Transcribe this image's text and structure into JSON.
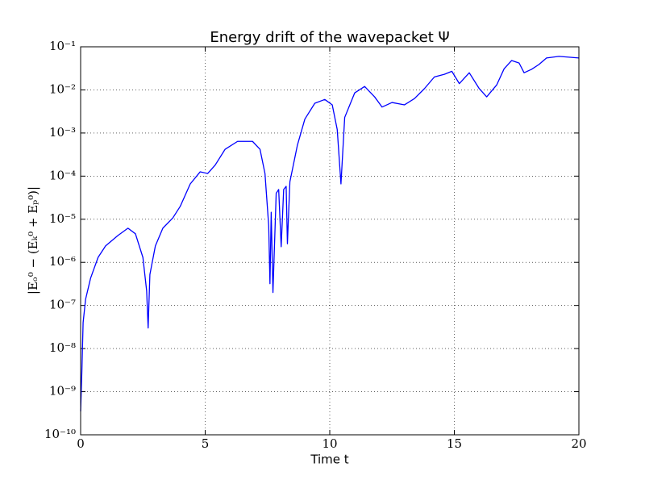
{
  "chart_data": {
    "type": "line",
    "title": "Energy drift of the wavepacket Ψ",
    "xlabel": "Time t",
    "ylabel": "|Eₒ⁰ − (Eₖ⁰ + Eₚ⁰)|",
    "color": "#0000ff",
    "yscale": "log",
    "grid": true,
    "xlim": [
      0,
      20
    ],
    "xticks": [
      0,
      5,
      10,
      15,
      20
    ],
    "ylim": [
      1e-10,
      0.1
    ],
    "yticks": [
      {
        "value": 1e-10,
        "label": "10⁻¹⁰"
      },
      {
        "value": 1e-09,
        "label": "10⁻⁹"
      },
      {
        "value": 1e-08,
        "label": "10⁻⁸"
      },
      {
        "value": 1e-07,
        "label": "10⁻⁷"
      },
      {
        "value": 1e-06,
        "label": "10⁻⁶"
      },
      {
        "value": 1e-05,
        "label": "10⁻⁵"
      },
      {
        "value": 0.0001,
        "label": "10⁻⁴"
      },
      {
        "value": 0.001,
        "label": "10⁻³"
      },
      {
        "value": 0.01,
        "label": "10⁻²"
      },
      {
        "value": 0.1,
        "label": "10⁻¹"
      }
    ],
    "x": [
      0,
      0.05,
      0.1,
      0.2,
      0.4,
      0.7,
      1.0,
      1.5,
      1.9,
      2.2,
      2.5,
      2.65,
      2.71,
      2.78,
      3.0,
      3.3,
      3.7,
      4.0,
      4.4,
      4.8,
      5.1,
      5.4,
      5.8,
      6.3,
      6.9,
      7.2,
      7.4,
      7.55,
      7.6,
      7.65,
      7.72,
      7.85,
      7.95,
      8.05,
      8.15,
      8.25,
      8.3,
      8.4,
      8.7,
      9.0,
      9.4,
      9.8,
      10.1,
      10.3,
      10.45,
      10.6,
      11.0,
      11.4,
      11.8,
      12.1,
      12.5,
      13.0,
      13.4,
      13.8,
      14.2,
      14.6,
      14.9,
      15.2,
      15.6,
      16.0,
      16.3,
      16.7,
      17.0,
      17.3,
      17.6,
      17.8,
      18.1,
      18.4,
      18.7,
      19.2,
      20.0
    ],
    "values": [
      3.5e-10,
      3e-09,
      4e-08,
      1.4e-07,
      4.3e-07,
      1.3e-06,
      2.4e-06,
      4.2e-06,
      6.2e-06,
      4.6e-06,
      1.3e-06,
      2.2e-07,
      3e-08,
      5.2e-07,
      2.4e-06,
      6.2e-06,
      1.07e-05,
      2e-05,
      6.6e-05,
      0.000126,
      0.000115,
      0.00018,
      0.00042,
      0.00064,
      0.00064,
      0.00042,
      0.000115,
      7e-06,
      3.2e-07,
      1.45e-05,
      2e-07,
      4e-05,
      4.9e-05,
      2.3e-06,
      4.9e-05,
      5.8e-05,
      2.7e-06,
      7.4e-05,
      0.00052,
      0.0021,
      0.0049,
      0.006,
      0.0045,
      0.0012,
      6.6e-05,
      0.0023,
      0.0085,
      0.012,
      0.0069,
      0.004,
      0.0051,
      0.0045,
      0.0063,
      0.0107,
      0.02,
      0.023,
      0.027,
      0.014,
      0.025,
      0.0107,
      0.0069,
      0.013,
      0.031,
      0.048,
      0.042,
      0.025,
      0.03,
      0.039,
      0.055,
      0.06,
      0.055
    ]
  }
}
